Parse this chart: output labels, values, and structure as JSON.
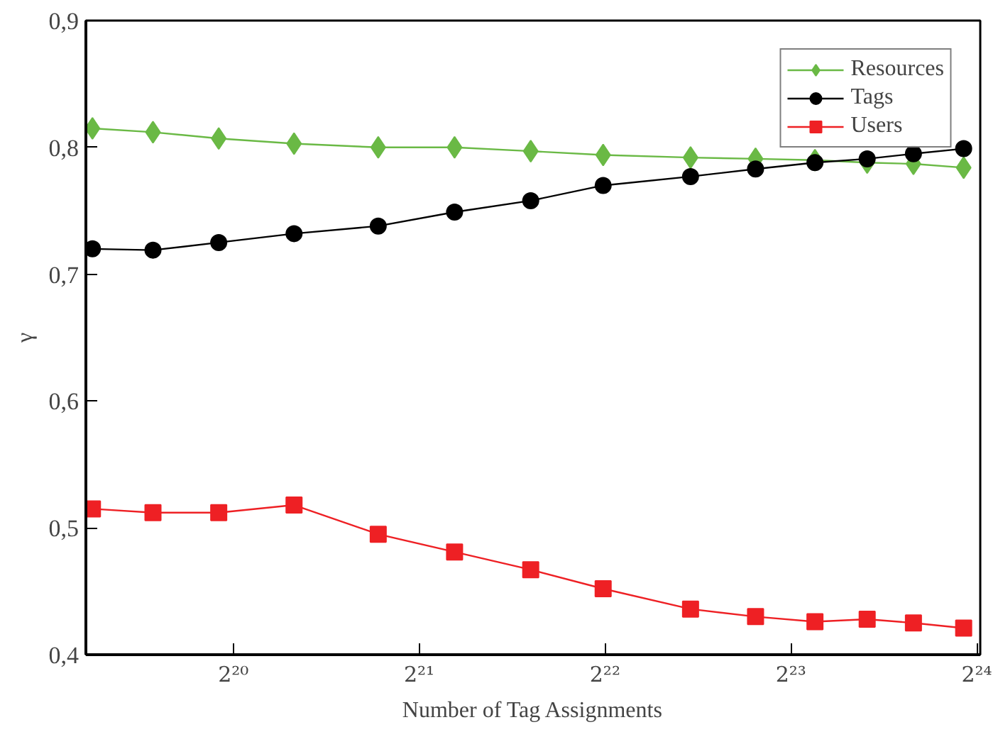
{
  "chart_data": {
    "type": "line",
    "xlabel": "Number of Tag Assignments",
    "ylabel": "γ",
    "log": "x",
    "grid": false,
    "legend": "top right",
    "x": [
      620000,
      777000,
      993000,
      1315000,
      1800000,
      2393000,
      3179000,
      4165000,
      5770000,
      7353000,
      9177000,
      11150000,
      13250000,
      15980000
    ],
    "xlim": [
      605000,
      17000000
    ],
    "xticks": [
      {
        "value": 1048576,
        "label": "2²⁰"
      },
      {
        "value": 2097152,
        "label": "2²¹"
      },
      {
        "value": 4194304,
        "label": "2²²"
      },
      {
        "value": 8388608,
        "label": "2²³"
      },
      {
        "value": 16777216,
        "label": "2²⁴"
      }
    ],
    "ylim": [
      0.4,
      0.9
    ],
    "yticks": [
      {
        "value": 0.4,
        "label": "0,4"
      },
      {
        "value": 0.5,
        "label": "0,5"
      },
      {
        "value": 0.6,
        "label": "0,6"
      },
      {
        "value": 0.7,
        "label": "0,7"
      },
      {
        "value": 0.8,
        "label": "0,8"
      },
      {
        "value": 0.9,
        "label": "0,9"
      }
    ],
    "series": [
      {
        "name": "Resources",
        "color": "#6ab945",
        "marker": "diamond",
        "values": [
          0.815,
          0.812,
          0.807,
          0.803,
          0.8,
          0.8,
          0.797,
          0.794,
          0.792,
          0.791,
          0.79,
          0.788,
          0.787,
          0.784
        ]
      },
      {
        "name": "Tags",
        "color": "#000000",
        "marker": "circle",
        "values": [
          0.72,
          0.719,
          0.725,
          0.732,
          0.738,
          0.749,
          0.758,
          0.77,
          0.777,
          0.783,
          0.788,
          0.791,
          0.795,
          0.799
        ]
      },
      {
        "name": "Users",
        "color": "#ee2024",
        "marker": "square",
        "values": [
          0.515,
          0.512,
          0.512,
          0.518,
          0.495,
          0.481,
          0.467,
          0.452,
          0.436,
          0.43,
          0.426,
          0.428,
          0.425,
          0.421
        ]
      }
    ]
  }
}
